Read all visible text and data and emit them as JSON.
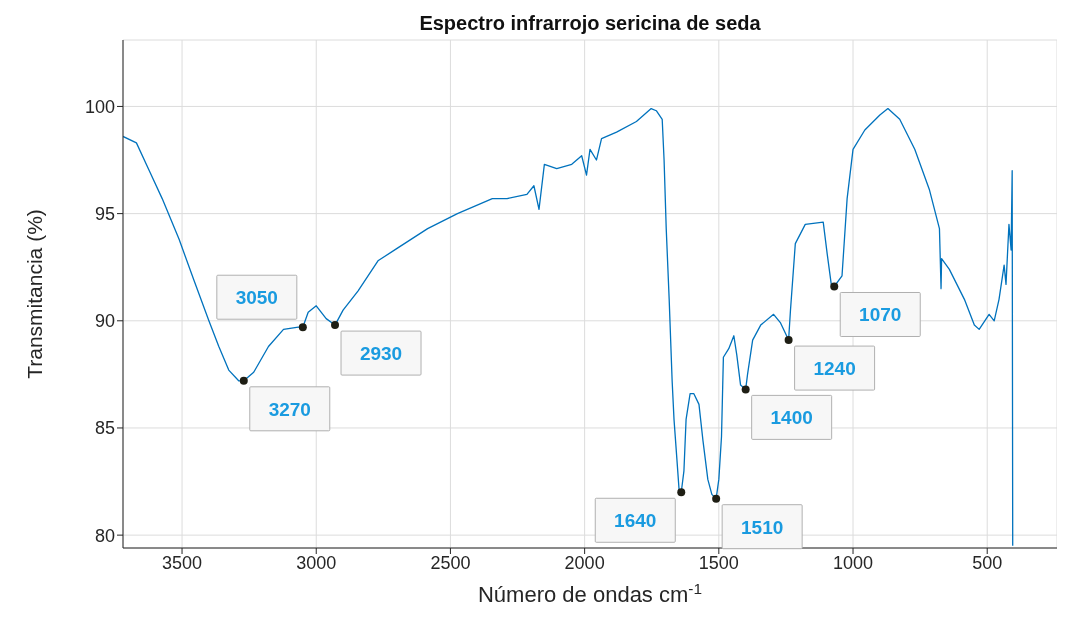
{
  "chart_data": {
    "type": "line",
    "title": "Espectro infrarrojo sericina de seda",
    "xlabel": "Número de ondas cm$^{-1}$",
    "ylabel": "Transmitancia (%)",
    "series": [
      {
        "color": "#0072bd",
        "x": [
          3720,
          3670,
          3622,
          3574,
          3511,
          3456,
          3400,
          3363,
          3326,
          3289,
          3270,
          3233,
          3178,
          3122,
          3067,
          3050,
          3030,
          3000,
          2963,
          2930,
          2900,
          2844,
          2770,
          2696,
          2585,
          2474,
          2344,
          2289,
          2215,
          2189,
          2170,
          2150,
          2104,
          2048,
          2011,
          1993,
          1980,
          1956,
          1937,
          1881,
          1807,
          1752,
          1733,
          1711,
          1704,
          1696,
          1685,
          1674,
          1667,
          1656,
          1648,
          1640,
          1630,
          1622,
          1607,
          1593,
          1574,
          1559,
          1541,
          1526,
          1510,
          1500,
          1490,
          1483,
          1463,
          1444,
          1433,
          1419,
          1400,
          1393,
          1374,
          1344,
          1296,
          1270,
          1240,
          1233,
          1215,
          1178,
          1111,
          1096,
          1081,
          1070,
          1041,
          1022,
          1000,
          956,
          900,
          870,
          826,
          770,
          715,
          678,
          672,
          670,
          641,
          585,
          548,
          530,
          493,
          474,
          456,
          437,
          430,
          419,
          411,
          407,
          405
        ],
        "values": [
          98.6,
          98.3,
          97.0,
          95.7,
          93.8,
          91.9,
          90.0,
          88.8,
          87.7,
          87.2,
          87.2,
          87.6,
          88.8,
          89.6,
          89.7,
          89.7,
          90.4,
          90.7,
          90.1,
          89.8,
          90.5,
          91.4,
          92.8,
          93.4,
          94.3,
          95.0,
          95.7,
          95.7,
          95.9,
          96.3,
          95.2,
          97.3,
          97.1,
          97.3,
          97.7,
          96.8,
          98.0,
          97.5,
          98.5,
          98.8,
          99.3,
          99.9,
          99.8,
          99.4,
          97.5,
          94.3,
          91.0,
          87.2,
          85.4,
          83.5,
          82.1,
          82.0,
          83.0,
          85.4,
          86.6,
          86.6,
          86.1,
          84.4,
          82.6,
          81.9,
          81.7,
          82.6,
          84.6,
          88.3,
          88.7,
          89.3,
          88.4,
          87.0,
          86.8,
          87.5,
          89.1,
          89.8,
          90.3,
          89.9,
          89.1,
          90.5,
          93.6,
          94.5,
          94.6,
          93.1,
          91.7,
          91.6,
          92.1,
          95.7,
          98.0,
          98.9,
          99.6,
          99.9,
          99.4,
          98.0,
          96.1,
          94.3,
          91.5,
          92.9,
          92.4,
          91.0,
          89.8,
          89.6,
          90.3,
          90.0,
          91.0,
          92.6,
          91.7,
          94.5,
          93.3,
          97.0,
          79.5
        ]
      }
    ],
    "xlim": [
      3720,
      240
    ],
    "xticks": [
      3500,
      3000,
      2500,
      2000,
      1500,
      1000,
      500
    ],
    "ylim": [
      79.4,
      103.1
    ],
    "yticks": [
      80,
      85,
      90,
      95,
      100
    ],
    "grid": true,
    "marker": "none",
    "line_style": "solid",
    "annotations": [
      {
        "text": "3270",
        "x": 3270,
        "y": 87.2
      },
      {
        "text": "3050",
        "x": 3050,
        "y": 89.7
      },
      {
        "text": "2930",
        "x": 2930,
        "y": 89.8
      },
      {
        "text": "1640",
        "x": 1640,
        "y": 82.0
      },
      {
        "text": "1510",
        "x": 1510,
        "y": 81.7
      },
      {
        "text": "1400",
        "x": 1400,
        "y": 86.8
      },
      {
        "text": "1240",
        "x": 1240,
        "y": 89.1
      },
      {
        "text": "1070",
        "x": 1070,
        "y": 91.6
      }
    ]
  }
}
